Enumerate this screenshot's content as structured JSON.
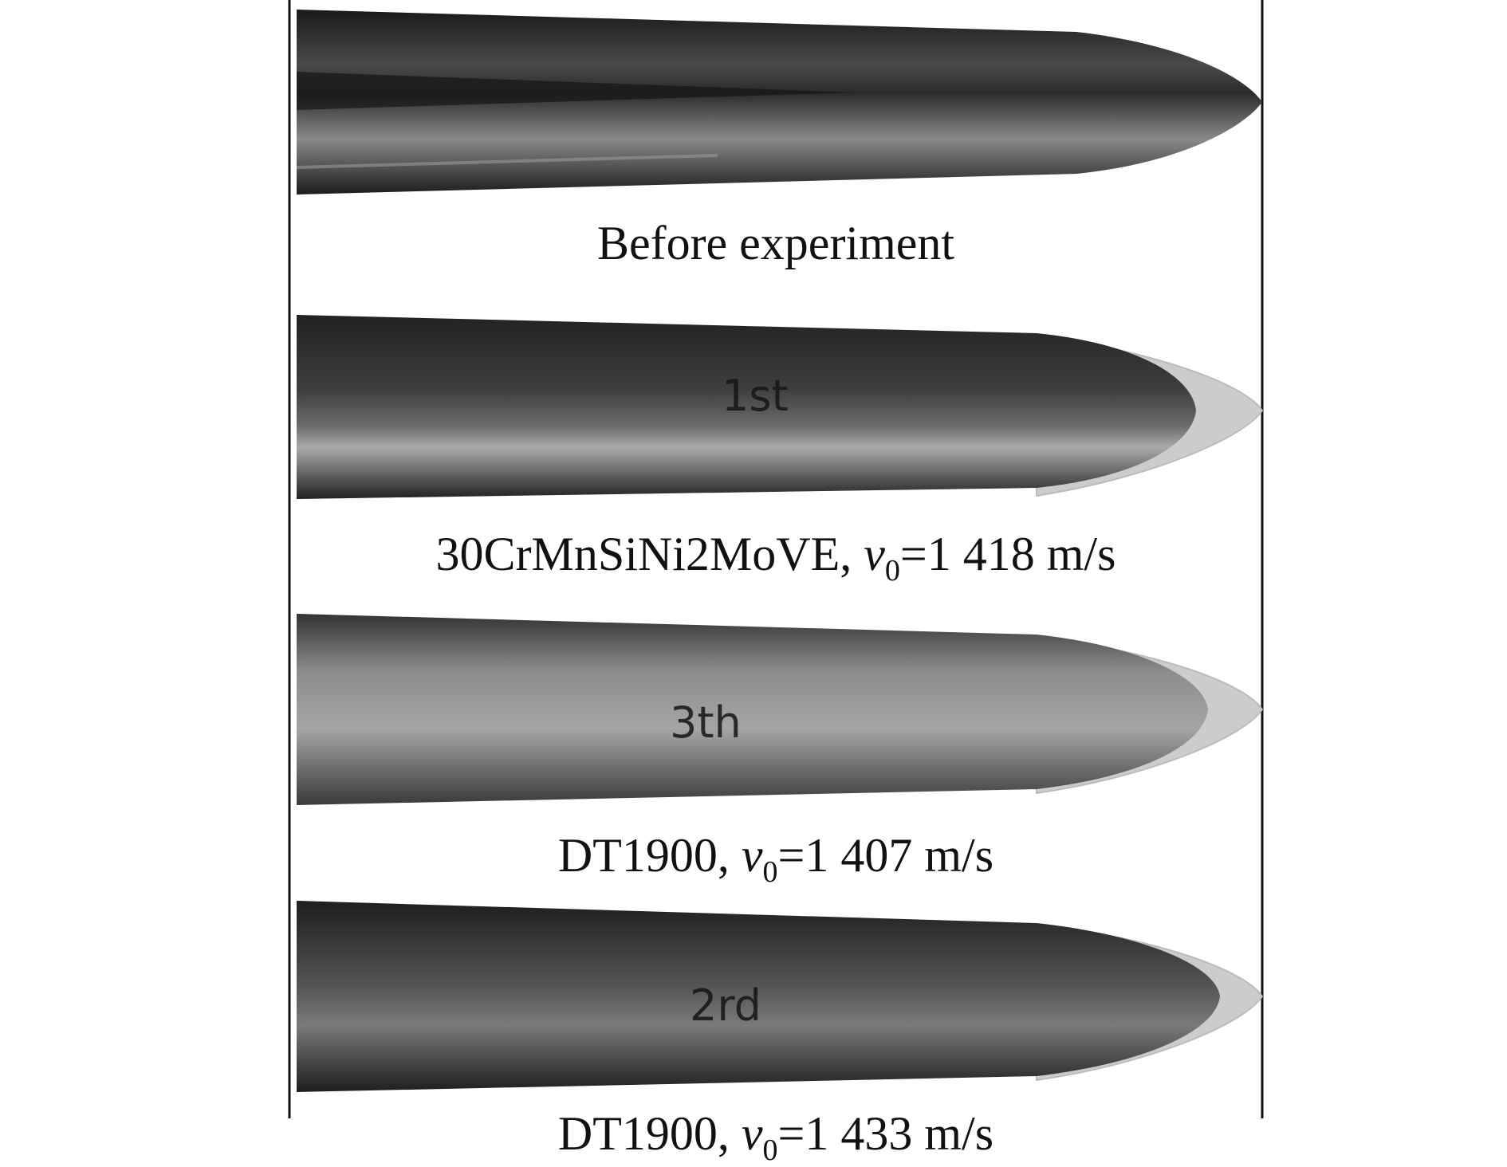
{
  "figure": {
    "panels": [
      {
        "caption": "Before experiment",
        "mark": "",
        "deformed": false
      },
      {
        "material": "30CrMnSiNi2MoVE, ",
        "var": "v",
        "sub": "0",
        "value": "=1 418 m/s",
        "mark": "1st",
        "deformed": true
      },
      {
        "material": "DT1900, ",
        "var": "v",
        "sub": "0",
        "value": "=1 407 m/s",
        "mark": "3th",
        "deformed": true
      },
      {
        "material": "DT1900, ",
        "var": "v",
        "sub": "0",
        "value": "=1 433 m/s",
        "mark": "2rd",
        "deformed": true
      }
    ]
  }
}
